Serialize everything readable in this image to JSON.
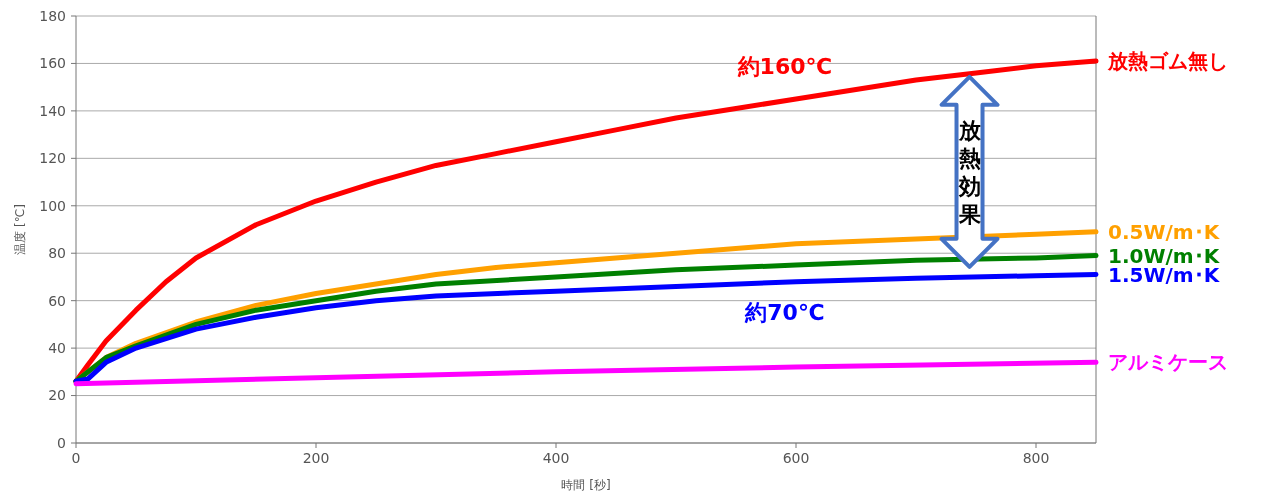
{
  "chart_data": {
    "type": "line",
    "xlabel": "時間 [秒]",
    "ylabel": "温度 [℃]",
    "xlim": [
      0,
      850
    ],
    "ylim": [
      0,
      180
    ],
    "xticks": [
      0,
      200,
      400,
      600,
      800
    ],
    "yticks": [
      0,
      20,
      40,
      60,
      80,
      100,
      120,
      140,
      160,
      180
    ],
    "grid": "y",
    "legend": false,
    "marker": "none",
    "line_style": "solid",
    "series": [
      {
        "name": "放熱ゴム無し",
        "color": "#ff0000",
        "x": [
          0,
          10,
          25,
          50,
          75,
          100,
          150,
          200,
          250,
          300,
          350,
          400,
          450,
          500,
          550,
          600,
          650,
          700,
          750,
          800,
          850
        ],
        "values": [
          26,
          33,
          43,
          56,
          68,
          78,
          92,
          102,
          110,
          117,
          122,
          127,
          132,
          137,
          141,
          145,
          149,
          153,
          156,
          159,
          161
        ]
      },
      {
        "name": "0.5W/m･K",
        "color": "#ffa000",
        "x": [
          0,
          25,
          50,
          100,
          150,
          200,
          250,
          300,
          350,
          400,
          500,
          600,
          700,
          800,
          850
        ],
        "values": [
          26,
          36,
          42,
          51,
          58,
          63,
          67,
          71,
          74,
          76,
          80,
          84,
          86,
          88,
          89
        ]
      },
      {
        "name": "1.0W/m･K",
        "color": "#008000",
        "x": [
          0,
          25,
          50,
          100,
          150,
          200,
          250,
          300,
          400,
          500,
          600,
          700,
          800,
          850
        ],
        "values": [
          26,
          36,
          41,
          50,
          56,
          60,
          64,
          67,
          70,
          73,
          75,
          77,
          78,
          79
        ]
      },
      {
        "name": "1.5W/m･K",
        "color": "#0000ff",
        "x": [
          0,
          10,
          25,
          50,
          100,
          150,
          200,
          250,
          300,
          400,
          500,
          600,
          700,
          800,
          850
        ],
        "values": [
          26,
          27,
          34,
          40,
          48,
          53,
          57,
          60,
          62,
          64,
          66,
          68,
          69.5,
          70.5,
          71
        ]
      },
      {
        "name": "アルミケース",
        "color": "#ff00ff",
        "x": [
          0,
          200,
          400,
          600,
          850
        ],
        "values": [
          25,
          27.5,
          30,
          32,
          34
        ]
      }
    ],
    "annotations": [
      "約160℃",
      "約70℃",
      "放熱効果"
    ]
  }
}
